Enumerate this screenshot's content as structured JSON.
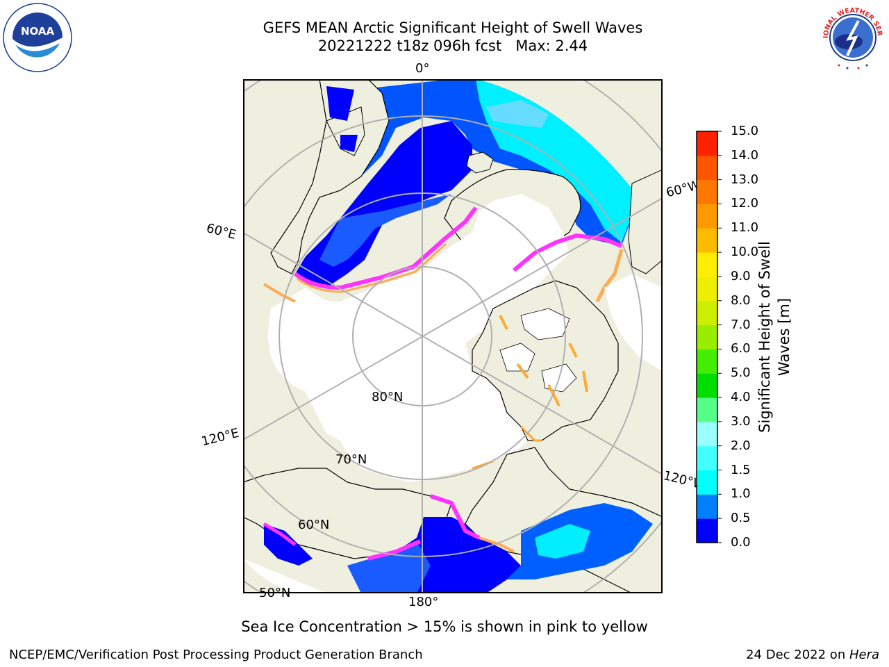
{
  "header": {
    "title_line1": "GEFS MEAN Arctic Significant Height of Swell Waves",
    "title_line2": "20221222 t18z 096h fcst   Max: 2.44"
  },
  "logos": {
    "left": {
      "name": "noaa-logo",
      "text": "NOAA",
      "ring_text": "NATIONAL OCEANIC AND ATMOSPHERIC ADMINISTRATION · U.S. DEPARTMENT OF COMMERCE"
    },
    "right": {
      "name": "nws-logo",
      "ring_text": "NATIONAL WEATHER SERVICE"
    }
  },
  "map": {
    "projection": "north polar stereographic",
    "longitude_labels": [
      "0°",
      "60°W",
      "120°W",
      "180°",
      "120°E",
      "60°E"
    ],
    "latitude_labels": [
      "80°N",
      "70°N",
      "60°N",
      "50°N"
    ],
    "colors": {
      "land": "#efefdf",
      "ice": "#ffffff",
      "grid": "#b0b0b0",
      "coast": "#000000",
      "ice_edge": [
        "#ff33ff",
        "#ffaa55",
        "#ffd040"
      ]
    }
  },
  "colorbar": {
    "label": "Significant Height of Swell Waves [m]",
    "label_line1": "Significant Height of Swell",
    "label_line2": "Waves [m]",
    "ticks": [
      "15.0",
      "14.0",
      "13.0",
      "12.0",
      "11.0",
      "10.0",
      "9.0",
      "8.0",
      "7.0",
      "6.0",
      "5.0",
      "4.0",
      "3.0",
      "2.0",
      "1.5",
      "1.0",
      "0.5",
      "0.0"
    ],
    "colors": [
      "#0000ff",
      "#0080ff",
      "#00ffff",
      "#44ffff",
      "#99ffff",
      "#55ff88",
      "#00dd00",
      "#44ee00",
      "#99ee00",
      "#ccee00",
      "#eeee00",
      "#ffee00",
      "#ffbb00",
      "#ff9900",
      "#ff7700",
      "#ff5500",
      "#ff2200"
    ]
  },
  "caption": "Sea Ice Concentration > 15% is shown in pink to yellow",
  "footer": {
    "left": "NCEP/EMC/Verification Post Processing Product Generation Branch",
    "right_date": "24 Dec 2022 on ",
    "right_host": "Hera"
  }
}
